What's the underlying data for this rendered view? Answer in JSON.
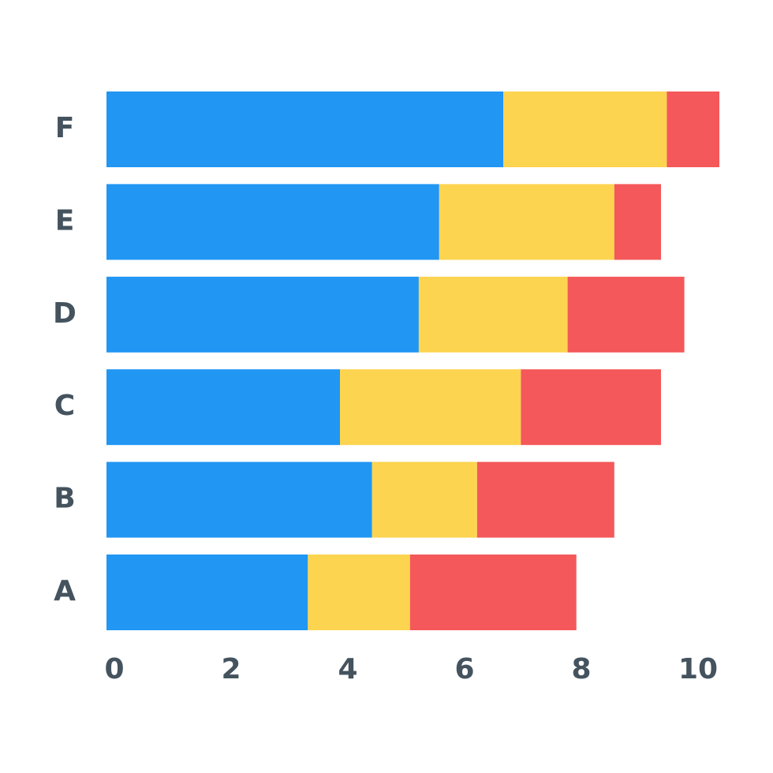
{
  "chart_data": {
    "type": "stacked-barh",
    "categories": [
      "A",
      "B",
      "C",
      "D",
      "E",
      "F"
    ],
    "series": [
      {
        "color": "#2196f3",
        "values": [
          3.45,
          4.55,
          4.0,
          5.35,
          5.7,
          6.8
        ]
      },
      {
        "color": "#fdd44f",
        "values": [
          1.75,
          1.8,
          3.1,
          2.55,
          3.0,
          2.8
        ]
      },
      {
        "color": "#f4585a",
        "values": [
          2.85,
          2.35,
          2.4,
          2.0,
          0.8,
          0.9
        ]
      }
    ],
    "xlim": [
      0,
      10.6
    ],
    "xticks": [
      0,
      2,
      4,
      6,
      8,
      10
    ],
    "grid": false
  }
}
